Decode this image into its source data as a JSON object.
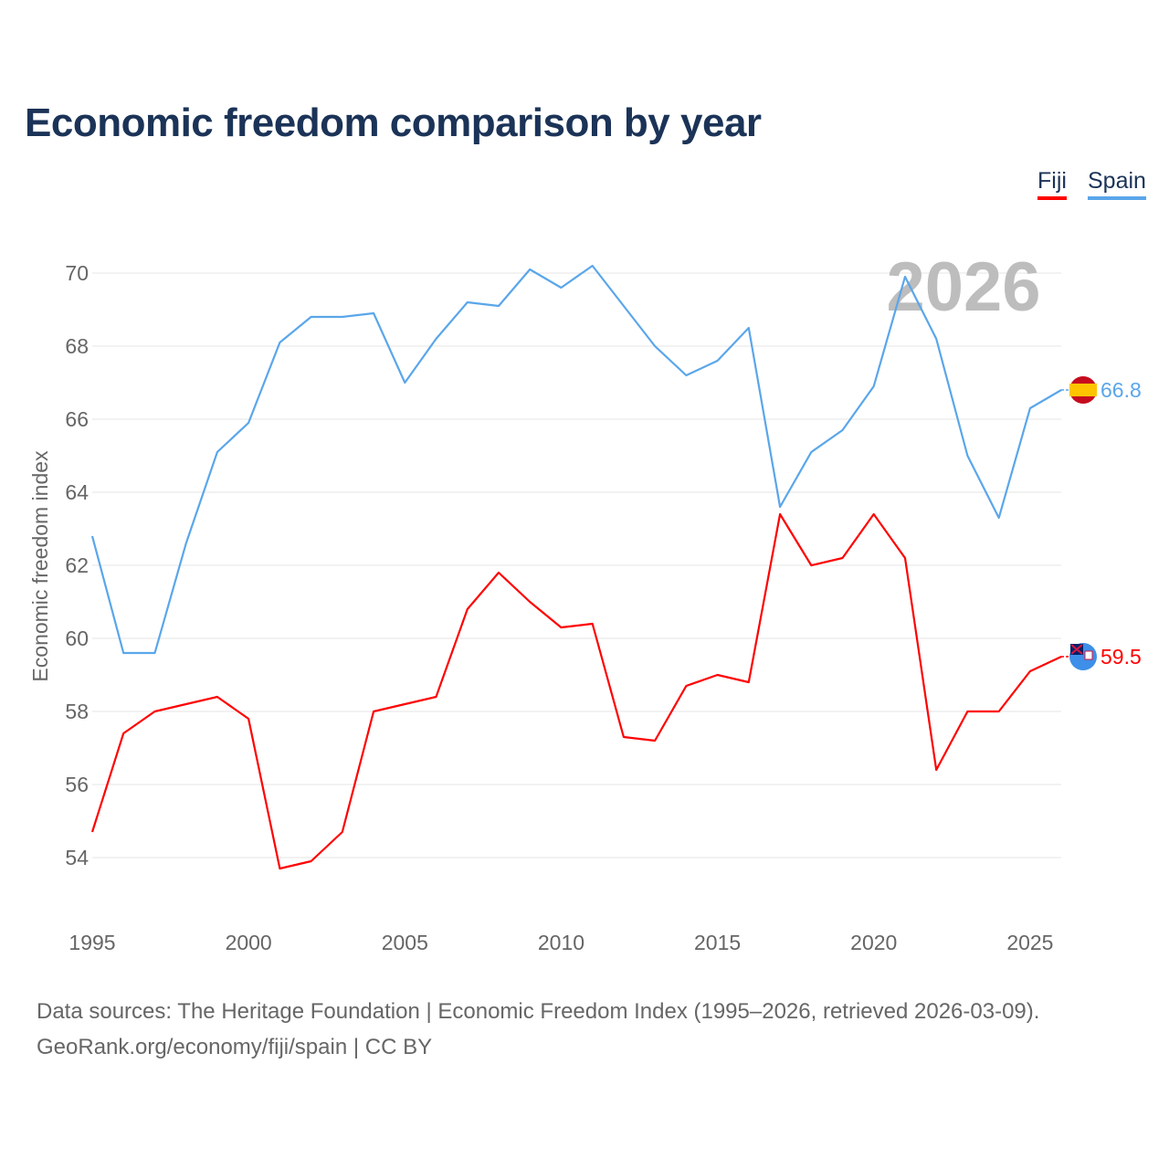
{
  "title": "Economic freedom comparison by year",
  "legend": [
    "Fiji",
    "Spain"
  ],
  "footer": {
    "line1": "Data sources: The Heritage Foundation | Economic Freedom Index (1995–2026, retrieved 2026-03-09).",
    "line2": "GeoRank.org/economy/fiji/spain | CC BY"
  },
  "chart_data": {
    "type": "line",
    "title": "Economic freedom comparison by year",
    "xlabel": "",
    "ylabel": "Economic freedom index",
    "year_label": "2026",
    "x": [
      1995,
      1996,
      1997,
      1998,
      1999,
      2000,
      2001,
      2002,
      2003,
      2004,
      2005,
      2006,
      2007,
      2008,
      2009,
      2010,
      2011,
      2012,
      2013,
      2014,
      2015,
      2016,
      2017,
      2018,
      2019,
      2020,
      2021,
      2022,
      2023,
      2024,
      2025,
      2026
    ],
    "xticks": [
      "1995",
      "2000",
      "2005",
      "2010",
      "2015",
      "2020",
      "2025"
    ],
    "yticks": [
      "54",
      "56",
      "58",
      "60",
      "62",
      "64",
      "66",
      "68",
      "70"
    ],
    "ylim": [
      52.5,
      71.5
    ],
    "grid": true,
    "legend_position": "top-right",
    "series": [
      {
        "name": "Fiji",
        "color": "#ff0000",
        "end_label": "59.5",
        "values": [
          54.7,
          57.4,
          58.0,
          58.2,
          58.4,
          57.8,
          53.7,
          53.9,
          54.7,
          58.0,
          58.2,
          58.4,
          60.8,
          61.8,
          61.0,
          60.3,
          60.4,
          57.3,
          57.2,
          58.7,
          59.0,
          58.8,
          63.4,
          62.0,
          62.2,
          63.4,
          62.2,
          56.4,
          58.0,
          58.0,
          59.1,
          59.5
        ]
      },
      {
        "name": "Spain",
        "color": "#5aa6ea",
        "end_label": "66.8",
        "values": [
          62.8,
          59.6,
          59.6,
          62.6,
          65.1,
          65.9,
          68.1,
          68.8,
          68.8,
          68.9,
          67.0,
          68.2,
          69.2,
          69.1,
          70.1,
          69.6,
          70.2,
          69.1,
          68.0,
          67.2,
          67.6,
          68.5,
          63.6,
          65.1,
          65.7,
          66.9,
          69.9,
          68.2,
          65.0,
          63.3,
          66.3,
          66.8
        ]
      }
    ]
  }
}
